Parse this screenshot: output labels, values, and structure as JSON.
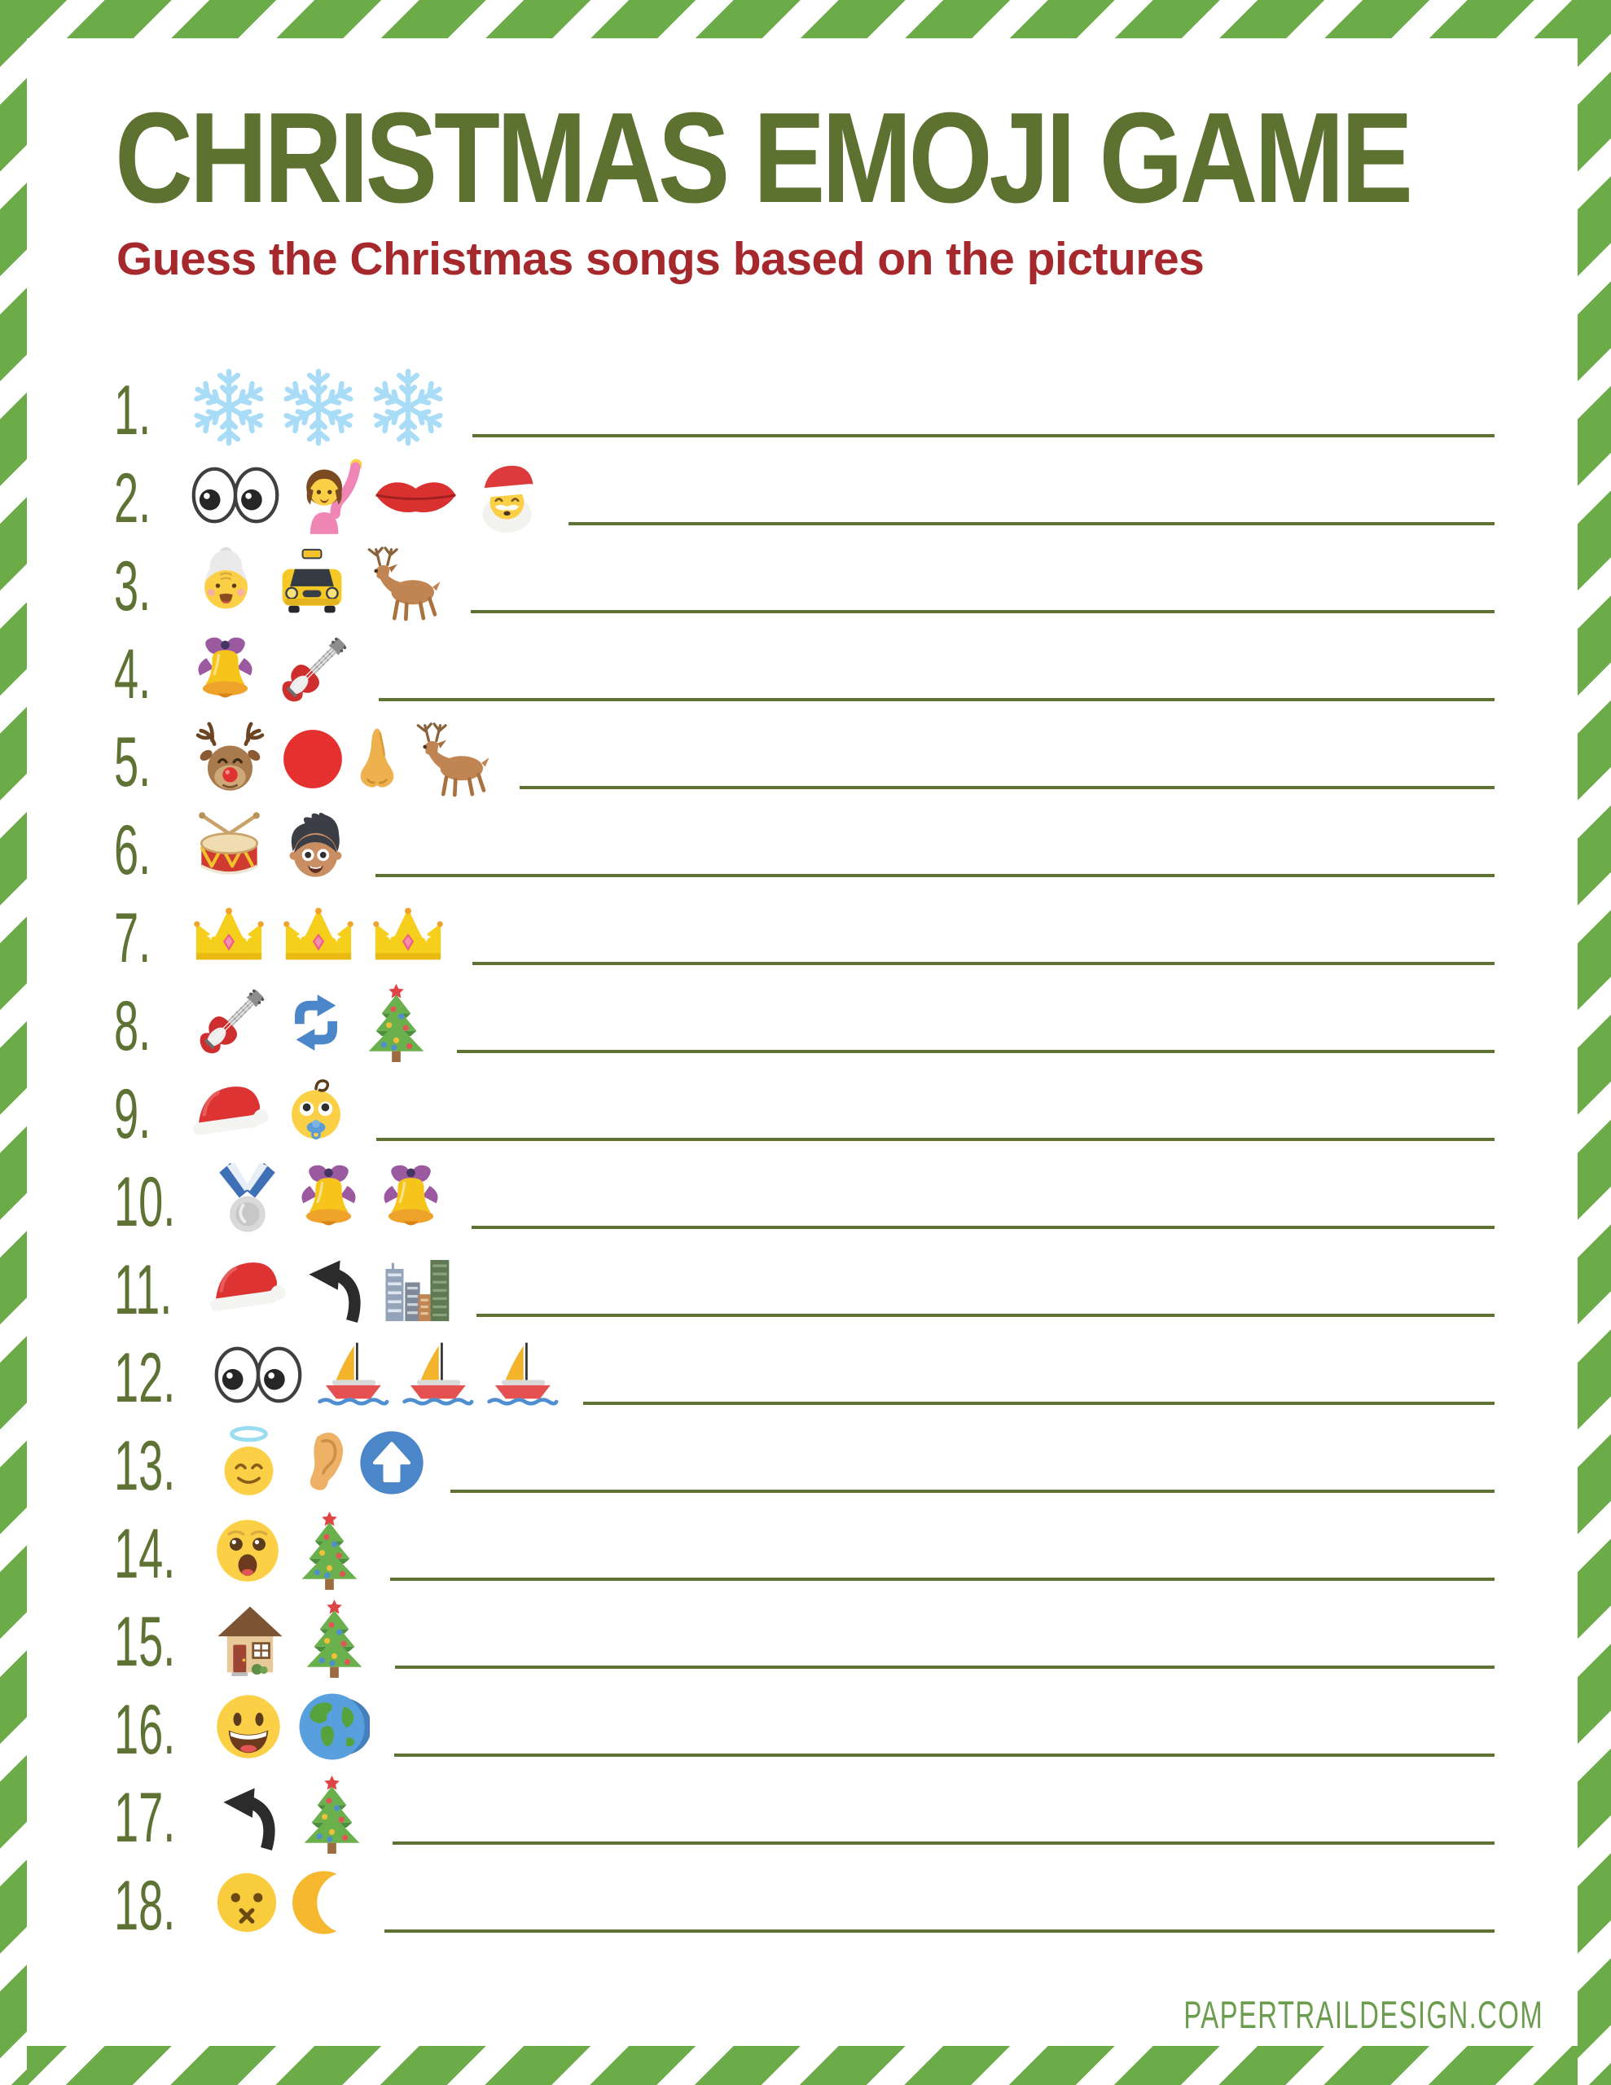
{
  "header": {
    "title": "CHRISTMAS EMOJI GAME",
    "subtitle": "Guess the Christmas songs based on the pictures"
  },
  "footer": {
    "text": "PAPERTRAILDESIGN.COM"
  },
  "colors": {
    "stripe_green": "#6bac49",
    "title_green": "#5d7130",
    "subtitle_red": "#a5282c",
    "accent_olive": "#5e7233",
    "footer_green": "#6c9c4e"
  },
  "rows": [
    {
      "number": "1.",
      "emojis": [
        "snowflake",
        "snowflake",
        "snowflake"
      ]
    },
    {
      "number": "2.",
      "emojis": [
        "eyes",
        "woman-raising-hand",
        "lips",
        "santa-claus"
      ]
    },
    {
      "number": "3.",
      "emojis": [
        "grandma",
        "taxi",
        "deer"
      ]
    },
    {
      "number": "4.",
      "emojis": [
        "bell",
        "electric-guitar"
      ]
    },
    {
      "number": "5.",
      "emojis": [
        "reindeer-face",
        "red-circle",
        "nose",
        "deer"
      ]
    },
    {
      "number": "6.",
      "emojis": [
        "drum",
        "boy"
      ]
    },
    {
      "number": "7.",
      "emojis": [
        "crown",
        "crown",
        "crown"
      ]
    },
    {
      "number": "8.",
      "emojis": [
        "electric-guitar",
        "recycle-arrows",
        "christmas-tree"
      ]
    },
    {
      "number": "9.",
      "emojis": [
        "santa-hat",
        "baby"
      ]
    },
    {
      "number": "10.",
      "emojis": [
        "silver-medal",
        "bell",
        "bell"
      ]
    },
    {
      "number": "11.",
      "emojis": [
        "santa-hat",
        "back-arrow",
        "cityscape"
      ]
    },
    {
      "number": "12.",
      "emojis": [
        "eyes",
        "sailboat",
        "sailboat",
        "sailboat"
      ]
    },
    {
      "number": "13.",
      "emojis": [
        "angel-face",
        "ear",
        "up-arrow-button"
      ]
    },
    {
      "number": "14.",
      "emojis": [
        "astonished-face",
        "christmas-tree"
      ]
    },
    {
      "number": "15.",
      "emojis": [
        "house",
        "christmas-tree"
      ]
    },
    {
      "number": "16.",
      "emojis": [
        "grinning-face",
        "earth-globe"
      ]
    },
    {
      "number": "17.",
      "emojis": [
        "back-arrow",
        "christmas-tree"
      ]
    },
    {
      "number": "18.",
      "emojis": [
        "silent-face",
        "crescent-moon"
      ]
    }
  ]
}
